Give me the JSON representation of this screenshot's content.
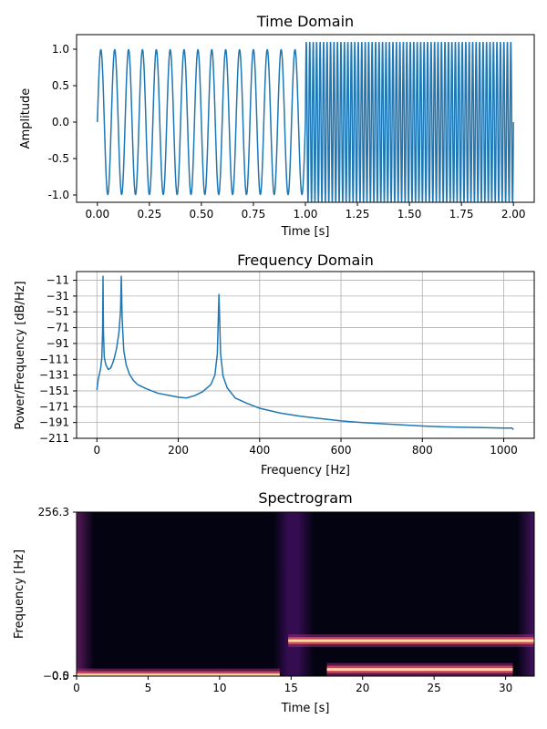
{
  "chart_data": [
    {
      "type": "line",
      "title": "Time Domain",
      "xlabel": "Time [s]",
      "ylabel": "Amplitude",
      "xlim": [
        -0.1,
        2.1
      ],
      "ylim": [
        -1.1,
        1.2
      ],
      "xticks": [
        "0.00",
        "0.25",
        "0.50",
        "0.75",
        "1.00",
        "1.25",
        "1.50",
        "1.75",
        "2.00"
      ],
      "yticks": [
        "1.0",
        "0.5",
        "0.0",
        "-0.5",
        "-1.0"
      ],
      "grid": false,
      "series": [
        {
          "segments": [
            {
              "x_start": 0.0,
              "x_end": 1.0,
              "frequency_hz": 15,
              "amplitude": 1.0
            },
            {
              "x_start": 1.0,
              "x_end": 2.0,
              "frequency_hz": 60,
              "amplitude": 1.1
            }
          ]
        }
      ],
      "color": "#1f77b4"
    },
    {
      "type": "line",
      "title": "Frequency Domain",
      "xlabel": "Frequency [Hz]",
      "ylabel": "Power/Frequency [dB/Hz]",
      "xlim": [
        -50,
        1075
      ],
      "ylim": [
        -211,
        0
      ],
      "xticks": [
        "0",
        "200",
        "400",
        "600",
        "800",
        "1000"
      ],
      "yticks": [
        "-11",
        "-31",
        "-51",
        "-71",
        "-91",
        "-111",
        "-131",
        "-151",
        "-171",
        "-191",
        "-211"
      ],
      "grid": true,
      "series": [
        {
          "x": [
            0,
            3,
            6,
            9,
            12,
            14,
            15,
            16,
            18,
            22,
            28,
            34,
            38,
            42,
            48,
            54,
            58,
            60,
            62,
            66,
            72,
            80,
            90,
            100,
            120,
            150,
            180,
            200,
            220,
            240,
            260,
            280,
            290,
            296,
            300,
            304,
            310,
            320,
            340,
            370,
            400,
            450,
            500,
            550,
            600,
            650,
            700,
            750,
            800,
            850,
            900,
            950,
            1000,
            1020,
            1024
          ],
          "y": [
            -150,
            -137,
            -130,
            -123,
            -110,
            -75,
            -6,
            -75,
            -108,
            -118,
            -124,
            -122,
            -117,
            -111,
            -98,
            -78,
            -50,
            -6,
            -60,
            -100,
            -118,
            -130,
            -138,
            -143,
            -148,
            -154,
            -157,
            -159,
            -160,
            -157,
            -152,
            -143,
            -131,
            -104,
            -29,
            -104,
            -132,
            -147,
            -160,
            -167,
            -173,
            -179,
            -183,
            -186,
            -189,
            -191,
            -192.5,
            -194,
            -195.5,
            -196.5,
            -197,
            -197.5,
            -198,
            -198,
            -200
          ]
        }
      ],
      "color": "#1f77b4"
    },
    {
      "type": "heatmap",
      "title": "Spectrogram",
      "xlabel": "Time [s]",
      "ylabel": "Frequency [Hz]",
      "xlim": [
        0,
        32
      ],
      "ylim": [
        -0.5,
        256.3
      ],
      "xticks": [
        "0",
        "5",
        "10",
        "15",
        "20",
        "25",
        "30"
      ],
      "yticks": [
        "256.3",
        "-0.5",
        "0.0"
      ],
      "colormap": "magma",
      "bands": [
        {
          "t_start": 0,
          "t_end": 14.2,
          "freq": 1.5,
          "intensity": 0.95
        },
        {
          "t_start": 14.8,
          "t_end": 32,
          "freq": 55,
          "intensity": 0.95
        },
        {
          "t_start": 17.5,
          "t_end": 30.5,
          "freq": 10,
          "intensity": 1.0
        }
      ],
      "transients": [
        {
          "t": 0,
          "intensity": 0.85,
          "width": 1.2
        },
        {
          "t": 15.2,
          "intensity": 0.7,
          "width": 1.4
        },
        {
          "t": 31.8,
          "intensity": 0.75,
          "width": 1.0
        }
      ]
    }
  ]
}
